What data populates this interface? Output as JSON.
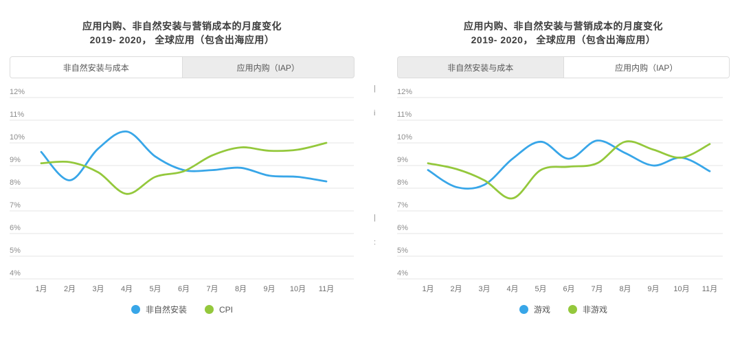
{
  "panels": [
    {
      "title_line1": "应用内购、非自然安装与营销成本的月度变化",
      "title_line2": "2019- 2020， 全球应用（包含出海应用）",
      "tabs": [
        {
          "label": "非自然安装与成本",
          "active": true
        },
        {
          "label": "应用内购（IAP）",
          "active": false
        }
      ],
      "legend": [
        {
          "label": "非自然安装",
          "color": "#38a6e8"
        },
        {
          "label": "CPI",
          "color": "#94c83c"
        }
      ]
    },
    {
      "title_line1": "应用内购、非自然安装与营销成本的月度变化",
      "title_line2": "2019- 2020， 全球应用（包含出海应用）",
      "tabs": [
        {
          "label": "非自然安装与成本",
          "active": false
        },
        {
          "label": "应用内购（IAP）",
          "active": true
        }
      ],
      "legend": [
        {
          "label": "游戏",
          "color": "#38a6e8"
        },
        {
          "label": "非游戏",
          "color": "#94c83c"
        }
      ]
    }
  ],
  "chart_data": [
    {
      "type": "line",
      "title": "应用内购、非自然安装与营销成本的月度变化 2019- 2020， 全球应用（包含出海应用） — 非自然安装与成本",
      "categories": [
        "1月",
        "2月",
        "3月",
        "4月",
        "5月",
        "6月",
        "7月",
        "8月",
        "9月",
        "10月",
        "11月"
      ],
      "xlabel": "",
      "ylabel": "",
      "ylim": [
        4,
        12
      ],
      "yticks": [
        "12%",
        "11%",
        "10%",
        "9%",
        "8%",
        "7%",
        "6%",
        "5%",
        "4%"
      ],
      "grid": true,
      "legend_position": "bottom",
      "series": [
        {
          "name": "非自然安装",
          "color": "#38a6e8",
          "values": [
            9.6,
            8.35,
            9.75,
            10.5,
            9.4,
            8.8,
            8.8,
            8.9,
            8.55,
            8.5,
            8.3
          ]
        },
        {
          "name": "CPI",
          "color": "#94c83c",
          "values": [
            9.1,
            9.15,
            8.7,
            7.75,
            8.5,
            8.75,
            9.45,
            9.8,
            9.65,
            9.7,
            10.0
          ]
        }
      ]
    },
    {
      "type": "line",
      "title": "应用内购、非自然安装与营销成本的月度变化 2019- 2020， 全球应用（包含出海应用） — 应用内购（IAP）",
      "categories": [
        "1月",
        "2月",
        "3月",
        "4月",
        "5月",
        "6月",
        "7月",
        "8月",
        "9月",
        "10月",
        "11月"
      ],
      "xlabel": "",
      "ylabel": "",
      "ylim": [
        4,
        12
      ],
      "yticks": [
        "12%",
        "11%",
        "10%",
        "9%",
        "8%",
        "7%",
        "6%",
        "5%",
        "4%"
      ],
      "grid": true,
      "legend_position": "bottom",
      "series": [
        {
          "name": "游戏",
          "color": "#38a6e8",
          "values": [
            8.8,
            8.05,
            8.15,
            9.3,
            10.05,
            9.3,
            10.1,
            9.55,
            9.0,
            9.35,
            8.75
          ]
        },
        {
          "name": "非游戏",
          "color": "#94c83c",
          "values": [
            9.1,
            8.85,
            8.35,
            7.55,
            8.8,
            8.95,
            9.1,
            10.05,
            9.7,
            9.35,
            9.95
          ]
        }
      ]
    }
  ],
  "divider_artifacts": [
    "|",
    "i",
    "|",
    ":"
  ],
  "colors": {
    "series_blue": "#38a6e8",
    "series_green": "#94c83c",
    "gridline": "#e5e5e5",
    "tab_inactive_bg": "#ececec",
    "tab_border": "#dcdcdc",
    "axis_label": "#8c8c8c",
    "month_label": "#6e6e6e",
    "title_text": "#3d3d3d"
  }
}
